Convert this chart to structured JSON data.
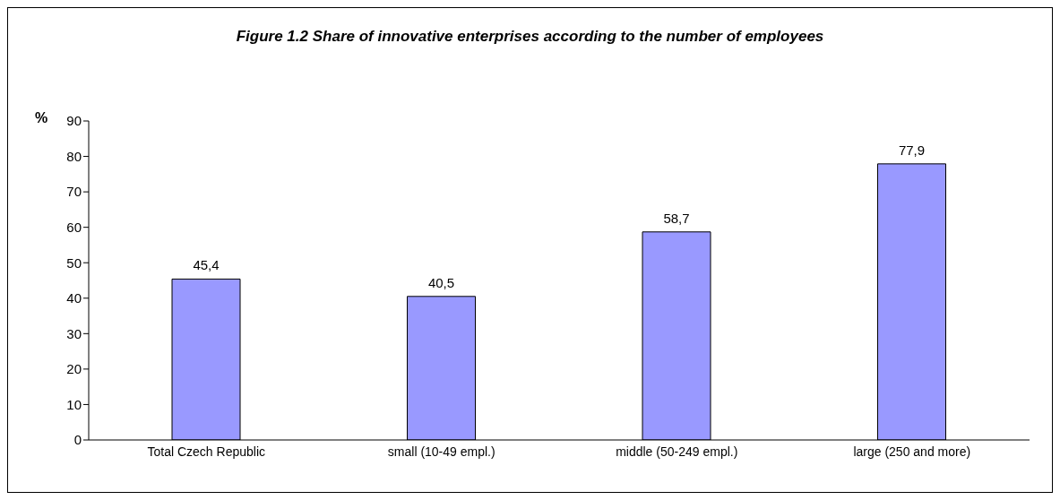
{
  "chart_data": {
    "type": "bar",
    "title": "Figure 1.2 Share of innovative enterprises according to the number of employees",
    "ylabel": "%",
    "categories": [
      "Total Czech Republic",
      "small  (10-49 empl.)",
      "middle  (50-249 empl.)",
      "large (250 and more)"
    ],
    "values": [
      45.4,
      40.5,
      58.7,
      77.9
    ],
    "value_labels": [
      "45,4",
      "40,5",
      "58,7",
      "77,9"
    ],
    "color": "#9999ff",
    "ylim": [
      0,
      90
    ],
    "yticks": [
      0,
      10,
      20,
      30,
      40,
      50,
      60,
      70,
      80,
      90
    ]
  }
}
